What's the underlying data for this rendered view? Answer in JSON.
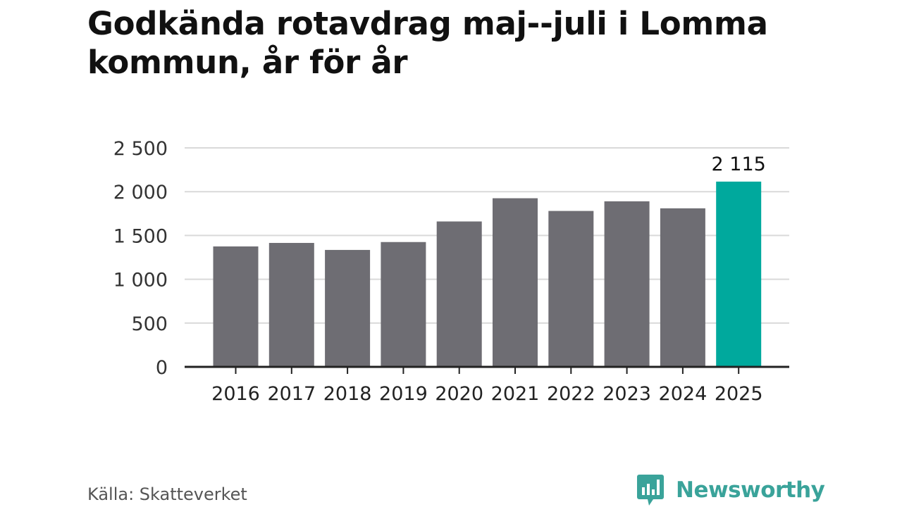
{
  "title_lines": [
    "Godkända rotavdrag maj--juli i Lomma",
    "kommun, år för år"
  ],
  "source": "Källa: Skatteverket",
  "brand": {
    "name": "Newsworthy",
    "icon": "newsworthy-logo-icon",
    "color": "#3aa39a"
  },
  "colors": {
    "default_bar": "#6e6d73",
    "highlight_bar": "#00a99d",
    "grid": "#d9d9d9",
    "axis": "#222222"
  },
  "chart_data": {
    "type": "bar",
    "categories": [
      "2016",
      "2017",
      "2018",
      "2019",
      "2020",
      "2021",
      "2022",
      "2023",
      "2024",
      "2025"
    ],
    "values": [
      1375,
      1415,
      1335,
      1425,
      1660,
      1925,
      1780,
      1890,
      1810,
      2115
    ],
    "highlight_index": 9,
    "value_label": "2 115",
    "y_ticks": [
      0,
      500,
      1000,
      1500,
      2000,
      2500
    ],
    "y_tick_labels": [
      "0",
      "500",
      "1 000",
      "1 500",
      "2 000",
      "2 500"
    ],
    "ylim": [
      0,
      2500
    ],
    "xlabel": "",
    "ylabel": "",
    "grid": true
  }
}
